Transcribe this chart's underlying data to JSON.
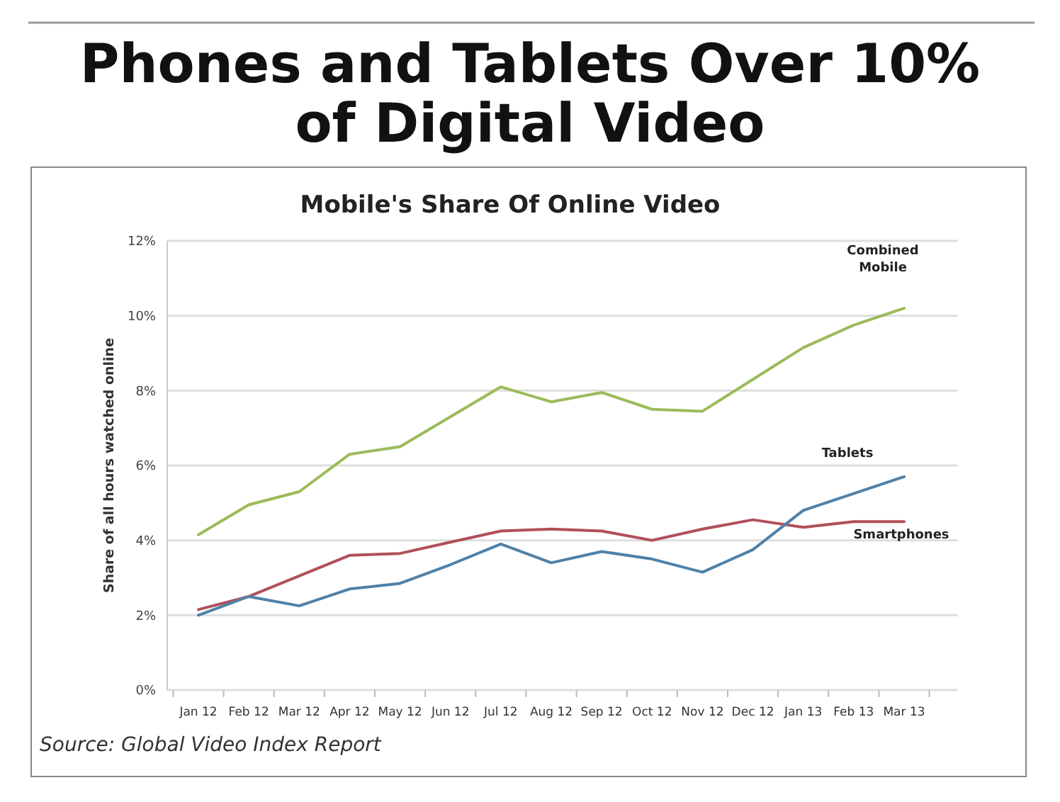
{
  "chart_data": {
    "type": "line",
    "title": "Phones and Tablets Over 10%\nof Digital Video",
    "subtitle": "Mobile's Share Of Online Video",
    "ylabel": "Share of all hours watched online",
    "categories": [
      "Jan 12",
      "Feb 12",
      "Mar 12",
      "Apr 12",
      "May 12",
      "Jun 12",
      "Jul 12",
      "Aug 12",
      "Sep 12",
      "Oct 12",
      "Nov 12",
      "Dec 12",
      "Jan 13",
      "Feb 13",
      "Mar 13"
    ],
    "series": [
      {
        "name": "Combined\nMobile",
        "color": "#9bbb59",
        "values": [
          4.15,
          4.95,
          5.3,
          6.3,
          6.5,
          7.3,
          8.1,
          7.7,
          7.95,
          7.5,
          7.45,
          8.3,
          9.15,
          9.75,
          10.2
        ]
      },
      {
        "name": "Smartphones",
        "color": "#b0505a",
        "values": [
          2.15,
          2.5,
          3.05,
          3.6,
          3.65,
          3.95,
          4.25,
          4.3,
          4.25,
          4.0,
          4.3,
          4.55,
          4.35,
          4.5,
          4.5
        ]
      },
      {
        "name": "Tablets",
        "color": "#4f81a8",
        "values": [
          2.0,
          2.5,
          2.25,
          2.7,
          2.85,
          3.35,
          3.9,
          3.4,
          3.7,
          3.5,
          3.15,
          3.75,
          4.8,
          5.25,
          5.7
        ]
      }
    ],
    "ylim": [
      0,
      12
    ],
    "yticks": [
      {
        "value": 0,
        "label": "0%"
      },
      {
        "value": 2,
        "label": "2%"
      },
      {
        "value": 4,
        "label": "4%"
      },
      {
        "value": 6,
        "label": "6%"
      },
      {
        "value": 8,
        "label": "8%"
      },
      {
        "value": 10,
        "label": "10%"
      },
      {
        "value": 12,
        "label": "12%"
      }
    ],
    "grid": "y",
    "marker": "none",
    "line_style": "solid",
    "annotations": [
      "Source: Global Video Index Report"
    ]
  }
}
